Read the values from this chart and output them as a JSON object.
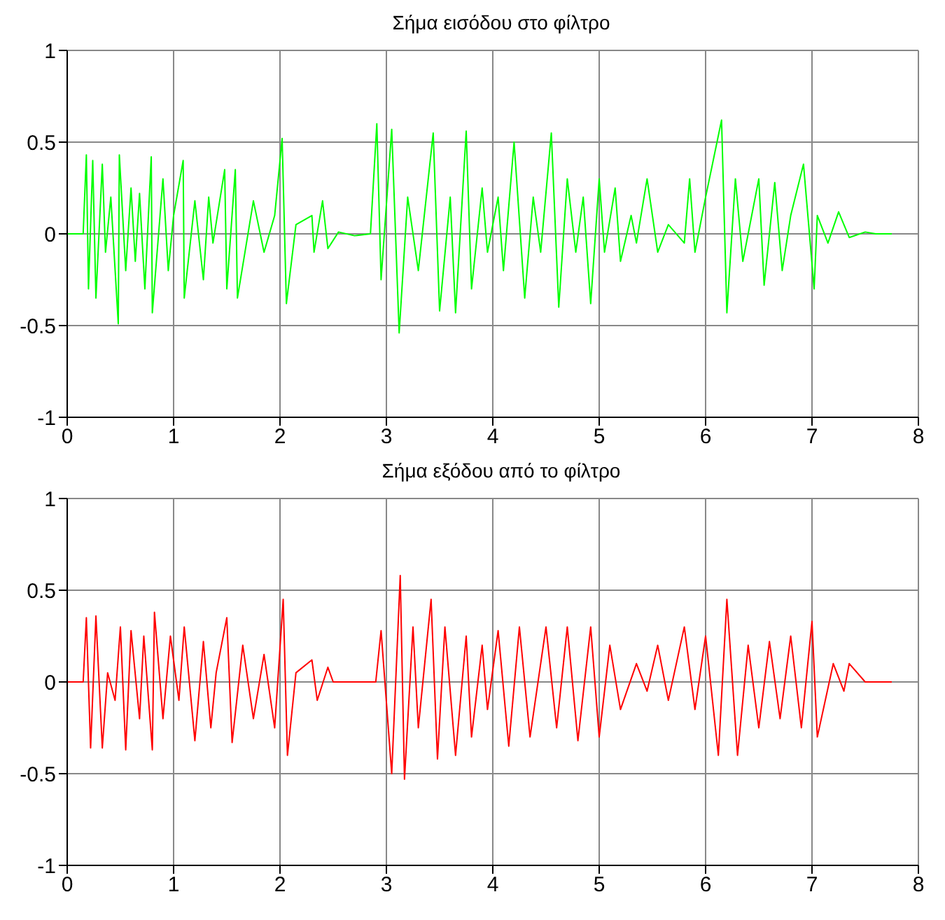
{
  "chart_data": [
    {
      "type": "line",
      "title": "Σήμα εισόδου στο φίλτρο",
      "color": "#00ff00",
      "xlim": [
        0,
        8
      ],
      "xticks": [
        0,
        1,
        2,
        3,
        4,
        5,
        6,
        7,
        8
      ],
      "ylim": [
        -1,
        1
      ],
      "yticks": [
        -1,
        -0.5,
        0,
        0.5,
        1
      ],
      "grid": true,
      "x": [
        0,
        0.15,
        0.18,
        0.2,
        0.24,
        0.27,
        0.33,
        0.36,
        0.41,
        0.48,
        0.49,
        0.55,
        0.6,
        0.64,
        0.68,
        0.73,
        0.79,
        0.8,
        0.9,
        0.95,
        1.0,
        1.09,
        1.1,
        1.2,
        1.28,
        1.33,
        1.37,
        1.48,
        1.5,
        1.58,
        1.6,
        1.75,
        1.85,
        1.95,
        2.02,
        2.06,
        2.15,
        2.3,
        2.32,
        2.4,
        2.45,
        2.55,
        2.7,
        2.85,
        2.91,
        2.95,
        3.05,
        3.12,
        3.2,
        3.3,
        3.44,
        3.5,
        3.6,
        3.65,
        3.75,
        3.8,
        3.9,
        3.95,
        4.05,
        4.1,
        4.2,
        4.3,
        4.38,
        4.45,
        4.55,
        4.62,
        4.7,
        4.78,
        4.85,
        4.92,
        5.0,
        5.05,
        5.15,
        5.2,
        5.3,
        5.35,
        5.45,
        5.55,
        5.65,
        5.8,
        5.85,
        5.9,
        6.0,
        6.15,
        6.2,
        6.28,
        6.35,
        6.5,
        6.55,
        6.65,
        6.72,
        6.8,
        6.92,
        7.02,
        7.05,
        7.15,
        7.25,
        7.35,
        7.5,
        7.6,
        7.75
      ],
      "values": [
        0,
        0,
        0.43,
        -0.3,
        0.4,
        -0.35,
        0.38,
        -0.1,
        0.2,
        -0.49,
        0.43,
        -0.2,
        0.25,
        -0.15,
        0.22,
        -0.3,
        0.42,
        -0.43,
        0.3,
        -0.2,
        0.1,
        0.4,
        -0.35,
        0.18,
        -0.25,
        0.2,
        -0.05,
        0.35,
        -0.3,
        0.35,
        -0.35,
        0.18,
        -0.1,
        0.1,
        0.52,
        -0.38,
        0.05,
        0.1,
        -0.1,
        0.18,
        -0.08,
        0.01,
        -0.01,
        0,
        0.6,
        -0.25,
        0.57,
        -0.54,
        0.2,
        -0.2,
        0.55,
        -0.42,
        0.2,
        -0.43,
        0.56,
        -0.3,
        0.25,
        -0.1,
        0.2,
        -0.2,
        0.5,
        -0.35,
        0.2,
        -0.1,
        0.55,
        -0.4,
        0.3,
        -0.1,
        0.2,
        -0.38,
        0.3,
        -0.1,
        0.25,
        -0.15,
        0.1,
        -0.05,
        0.3,
        -0.1,
        0.05,
        -0.05,
        0.3,
        -0.1,
        0.2,
        0.62,
        -0.43,
        0.3,
        -0.15,
        0.3,
        -0.28,
        0.28,
        -0.2,
        0.1,
        0.38,
        -0.3,
        0.1,
        -0.05,
        0.12,
        -0.02,
        0.01,
        0,
        0
      ]
    },
    {
      "type": "line",
      "title": "Σήμα εξόδου από το φίλτρο",
      "color": "#ff0000",
      "xlim": [
        0,
        8
      ],
      "xticks": [
        0,
        1,
        2,
        3,
        4,
        5,
        6,
        7,
        8
      ],
      "ylim": [
        -1,
        1
      ],
      "yticks": [
        -1,
        -0.5,
        0,
        0.5,
        1
      ],
      "grid": true,
      "x": [
        0,
        0.15,
        0.18,
        0.22,
        0.27,
        0.33,
        0.38,
        0.45,
        0.5,
        0.55,
        0.6,
        0.68,
        0.72,
        0.8,
        0.82,
        0.9,
        0.97,
        1.05,
        1.1,
        1.2,
        1.28,
        1.35,
        1.4,
        1.5,
        1.55,
        1.65,
        1.75,
        1.85,
        1.95,
        2.03,
        2.07,
        2.15,
        2.3,
        2.35,
        2.45,
        2.5,
        2.9,
        2.95,
        3.05,
        3.13,
        3.17,
        3.25,
        3.3,
        3.42,
        3.48,
        3.55,
        3.65,
        3.75,
        3.8,
        3.9,
        3.95,
        4.05,
        4.15,
        4.25,
        4.35,
        4.5,
        4.6,
        4.7,
        4.8,
        4.92,
        5.0,
        5.1,
        5.2,
        5.35,
        5.45,
        5.55,
        5.65,
        5.8,
        5.9,
        6.0,
        6.12,
        6.2,
        6.3,
        6.4,
        6.5,
        6.6,
        6.7,
        6.8,
        6.9,
        7.0,
        7.05,
        7.2,
        7.3,
        7.35,
        7.5,
        7.75
      ],
      "values": [
        0,
        0,
        0.35,
        -0.36,
        0.36,
        -0.36,
        0.05,
        -0.1,
        0.3,
        -0.37,
        0.28,
        -0.2,
        0.25,
        -0.37,
        0.38,
        -0.2,
        0.25,
        -0.1,
        0.3,
        -0.32,
        0.22,
        -0.25,
        0.05,
        0.35,
        -0.33,
        0.2,
        -0.2,
        0.15,
        -0.25,
        0.45,
        -0.4,
        0.05,
        0.12,
        -0.1,
        0.08,
        0,
        0,
        0.28,
        -0.5,
        0.58,
        -0.53,
        0.3,
        -0.25,
        0.45,
        -0.42,
        0.3,
        -0.4,
        0.25,
        -0.3,
        0.2,
        -0.15,
        0.28,
        -0.35,
        0.3,
        -0.3,
        0.3,
        -0.25,
        0.3,
        -0.32,
        0.3,
        -0.3,
        0.2,
        -0.15,
        0.1,
        -0.05,
        0.2,
        -0.1,
        0.3,
        -0.15,
        0.25,
        -0.4,
        0.45,
        -0.4,
        0.2,
        -0.25,
        0.22,
        -0.2,
        0.25,
        -0.25,
        0.33,
        -0.3,
        0.1,
        -0.05,
        0.1,
        0,
        0
      ]
    }
  ]
}
